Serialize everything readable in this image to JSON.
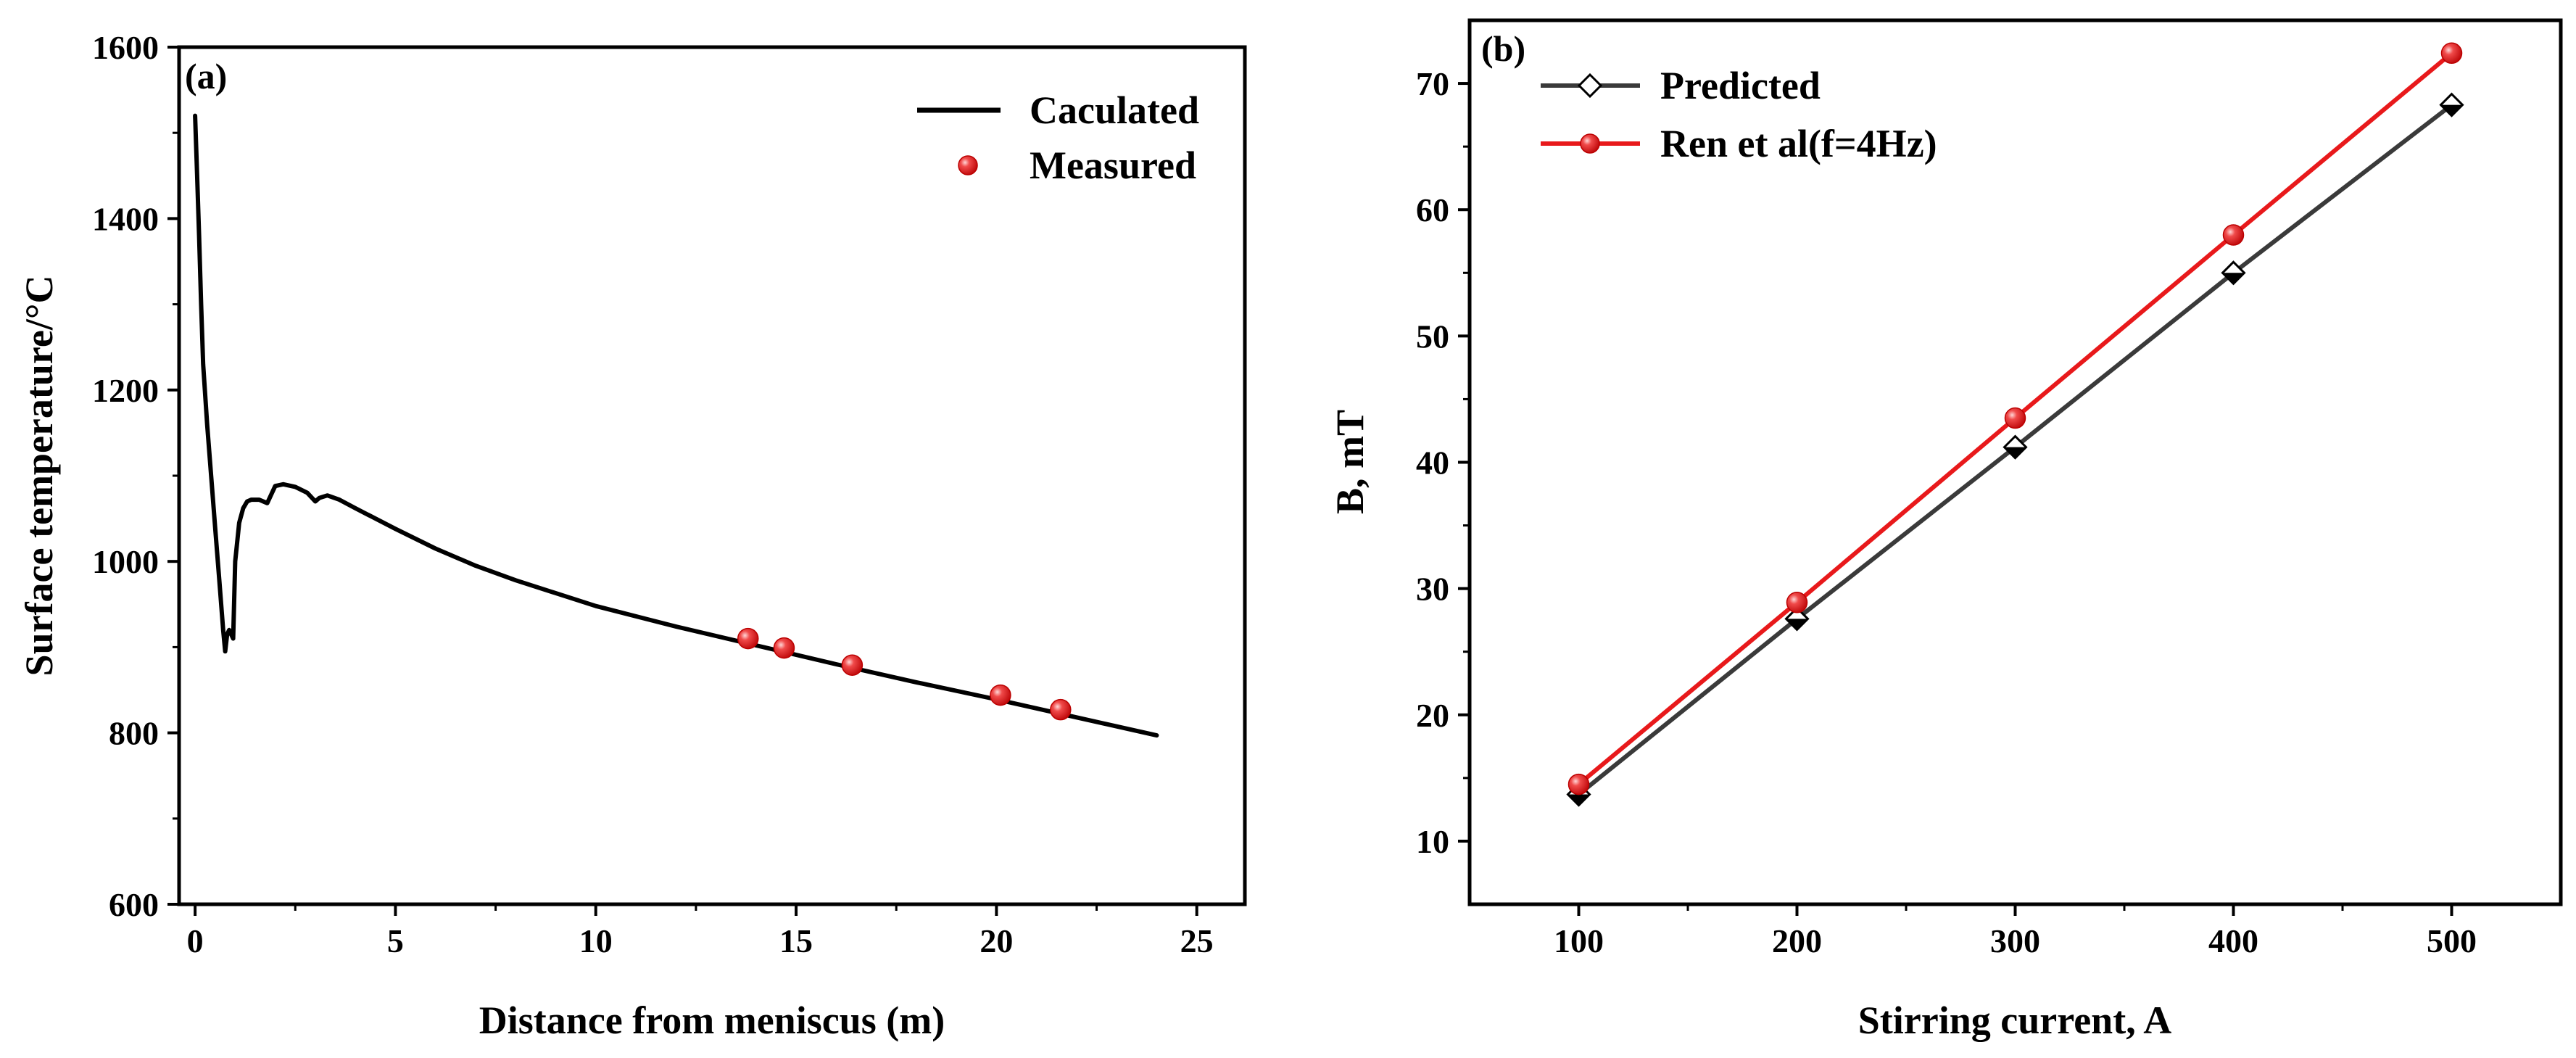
{
  "chart_data": [
    {
      "type": "line",
      "panel_label": "(a)",
      "xlabel": "Distance from meniscus (m)",
      "ylabel": "Surface temperature/°C",
      "xlim": [
        -0.4,
        26.2
      ],
      "ylim": [
        600,
        1600
      ],
      "xticks": [
        0,
        5,
        10,
        15,
        20,
        25
      ],
      "yticks": [
        600,
        800,
        1000,
        1200,
        1400,
        1600
      ],
      "grid": false,
      "legend_position": "top-right",
      "series": [
        {
          "name": "Caculated",
          "kind": "line",
          "color": "#000000",
          "x": [
            0,
            0.05,
            0.1,
            0.15,
            0.2,
            0.3,
            0.4,
            0.5,
            0.6,
            0.7,
            0.75,
            0.8,
            0.85,
            0.9,
            0.95,
            1.0,
            1.1,
            1.2,
            1.3,
            1.4,
            1.6,
            1.8,
            1.9,
            2.0,
            2.2,
            2.5,
            2.8,
            3.0,
            3.1,
            3.3,
            3.6,
            4.0,
            5.0,
            6.0,
            7.0,
            8.0,
            10.0,
            12.0,
            14.0,
            16.0,
            18.0,
            20.0,
            22.0,
            24.0
          ],
          "y": [
            1520,
            1450,
            1380,
            1300,
            1230,
            1160,
            1100,
            1040,
            980,
            920,
            895,
            915,
            920,
            915,
            910,
            1000,
            1045,
            1062,
            1070,
            1072,
            1072,
            1068,
            1078,
            1088,
            1090,
            1087,
            1080,
            1070,
            1074,
            1077,
            1072,
            1062,
            1038,
            1015,
            995,
            978,
            948,
            924,
            902,
            880,
            859,
            839,
            818,
            797
          ]
        },
        {
          "name": "Measured",
          "kind": "scatter",
          "color": "#e8191b",
          "x": [
            13.8,
            14.7,
            16.4,
            20.1,
            21.6
          ],
          "y": [
            910,
            899,
            879,
            844,
            827
          ]
        }
      ]
    },
    {
      "type": "line",
      "panel_label": "(b)",
      "xlabel": "Stirring current, A",
      "ylabel": "B, mT",
      "xlim": [
        50,
        550
      ],
      "ylim": [
        5,
        75
      ],
      "xticks": [
        100,
        200,
        300,
        400,
        500
      ],
      "yticks": [
        10,
        20,
        30,
        40,
        50,
        60,
        70
      ],
      "grid": false,
      "legend_position": "top-left",
      "categories": [
        100,
        200,
        300,
        400,
        500
      ],
      "series": [
        {
          "name": "Predicted",
          "marker": "diamond",
          "color": "#3a3a3a",
          "values": [
            13.7,
            27.6,
            41.2,
            55.0,
            68.3
          ]
        },
        {
          "name": "Ren et al(f=4Hz)",
          "marker": "circle",
          "color": "#e8191b",
          "values": [
            14.5,
            28.9,
            43.5,
            58.0,
            72.4
          ]
        }
      ]
    }
  ]
}
